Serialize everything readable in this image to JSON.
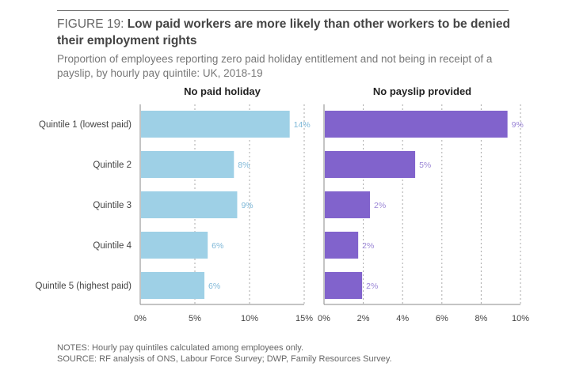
{
  "figure": {
    "prefix": "FIGURE 19: ",
    "title": "Low paid workers are more likely than other workers to be denied their employment rights",
    "subtitle": "Proportion of employees reporting zero paid holiday entitlement and not being in receipt of a payslip, by hourly pay quintile: UK, 2018-19",
    "notes": "NOTES: Hourly pay quintiles calculated among employees only.",
    "source": "SOURCE: RF analysis of ONS, Labour Force Survey; DWP, Family Resources Survey."
  },
  "chart_data": [
    {
      "type": "bar",
      "orientation": "horizontal",
      "title": "No paid holiday",
      "categories": [
        "Quintile 1 (lowest paid)",
        "Quintile 2",
        "Quintile 3",
        "Quintile 4",
        "Quintile 5 (highest paid)"
      ],
      "values": [
        13.6,
        8.5,
        8.8,
        6.1,
        5.8
      ],
      "data_labels": [
        "14%",
        "8%",
        "9%",
        "6%",
        "6%"
      ],
      "xlim": [
        0,
        15
      ],
      "xticks": [
        0,
        5,
        10,
        15
      ],
      "xtick_labels": [
        "0%",
        "5%",
        "10%",
        "15%"
      ],
      "xlabel": "",
      "ylabel": "",
      "grid": "vertical dotted",
      "color": "#9ed0e6",
      "label_color": "#7fb8d8"
    },
    {
      "type": "bar",
      "orientation": "horizontal",
      "title": "No payslip provided",
      "categories": [
        "Quintile 1 (lowest paid)",
        "Quintile 2",
        "Quintile 3",
        "Quintile 4",
        "Quintile 5 (highest paid)"
      ],
      "values": [
        9.3,
        4.6,
        2.3,
        1.7,
        1.9
      ],
      "data_labels": [
        "9%",
        "5%",
        "2%",
        "2%",
        "2%"
      ],
      "xlim": [
        0,
        10
      ],
      "xticks": [
        0,
        2,
        4,
        6,
        8,
        10
      ],
      "xtick_labels": [
        "0%",
        "2%",
        "4%",
        "6%",
        "8%",
        "10%"
      ],
      "xlabel": "",
      "ylabel": "",
      "grid": "vertical dotted",
      "color": "#8163cc",
      "label_color": "#9b86d6"
    }
  ]
}
